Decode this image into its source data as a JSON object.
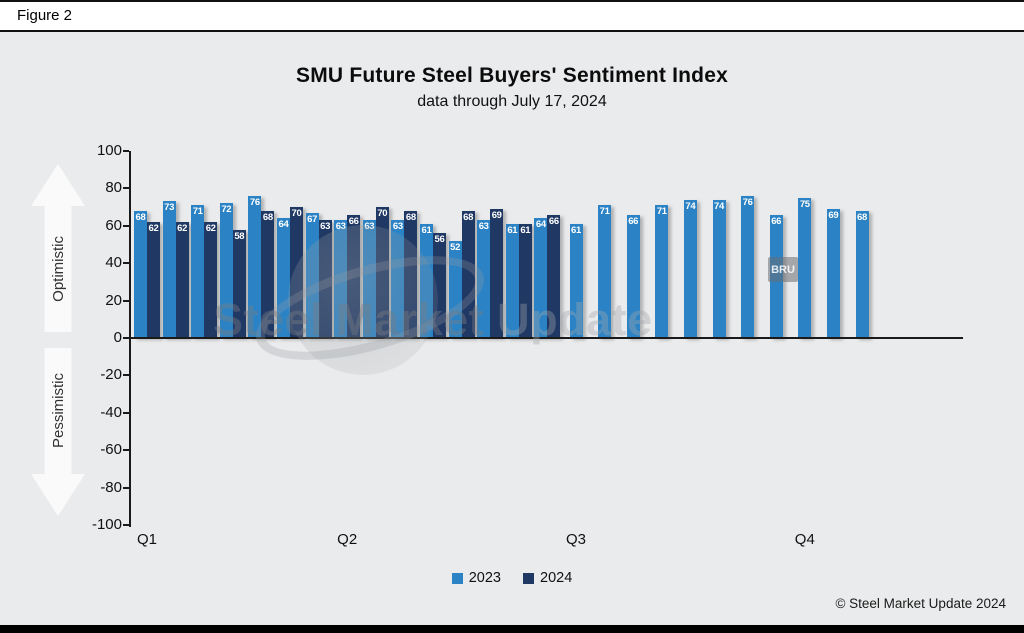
{
  "figure_label": "Figure 2",
  "title": "SMU Future Steel Buyers' Sentiment Index",
  "subtitle": "data through July 17, 2024",
  "axis": {
    "y_ticks": [
      100,
      80,
      60,
      40,
      20,
      0,
      -20,
      -40,
      -60,
      -80,
      -100
    ],
    "optimistic_label": "Optimistic",
    "pessimistic_label": "Pessimistic"
  },
  "watermark": {
    "text_bold": "Steel Market",
    "text_light": "Update",
    "badge": "BRU"
  },
  "legend": [
    {
      "label": "2023",
      "color": "#2b83c5"
    },
    {
      "label": "2024",
      "color": "#1f3864"
    }
  ],
  "copyright": "© Steel Market Update 2024",
  "chart_data": {
    "type": "bar",
    "title": "SMU Future Steel Buyers' Sentiment Index",
    "subtitle": "data through July 17, 2024",
    "ylim": [
      -100,
      100
    ],
    "y_tick_step": 20,
    "grid": false,
    "legend_position": "bottom",
    "value_labels": "white, inside bar tops",
    "quarter_labels": [
      "Q1",
      "Q2",
      "Q3",
      "Q4"
    ],
    "quarter_group_index": [
      0,
      7,
      15,
      23
    ],
    "series": [
      {
        "name": "2023",
        "color": "#2b83c5",
        "values": [
          68,
          73,
          71,
          72,
          76,
          64,
          67,
          63,
          63,
          63,
          61,
          52,
          63,
          61,
          64,
          61,
          71,
          66,
          71,
          74,
          74,
          76,
          66,
          75,
          69,
          68
        ]
      },
      {
        "name": "2024",
        "color": "#1f3864",
        "values": [
          62,
          62,
          62,
          58,
          68,
          70,
          63,
          66,
          70,
          68,
          56,
          68,
          69,
          61,
          66
        ]
      }
    ]
  }
}
